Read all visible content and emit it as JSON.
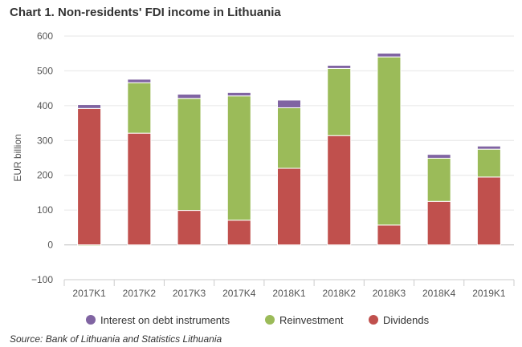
{
  "chart_data": {
    "type": "bar",
    "stacked": true,
    "title": "Chart 1. Non-residents' FDI income in Lithuania",
    "ylabel": "EUR billion",
    "xlabel": "",
    "ylim": [
      -100,
      600
    ],
    "yticks": [
      -100,
      0,
      100,
      200,
      300,
      400,
      500,
      600
    ],
    "ytick_labels": [
      "−100",
      "0",
      "100",
      "200",
      "300",
      "400",
      "500",
      "600"
    ],
    "grid": true,
    "legend_position": "bottom",
    "categories": [
      "2017K1",
      "2017K2",
      "2017K3",
      "2017K4",
      "2018K1",
      "2018K2",
      "2018K3",
      "2018K4",
      "2019K1"
    ],
    "series": [
      {
        "name": "Dividends",
        "color": "#c0504d",
        "values": [
          392,
          321,
          99,
          71,
          220,
          314,
          57,
          125,
          195
        ]
      },
      {
        "name": "Reinvestment",
        "color": "#9bbb59",
        "values": [
          -3,
          145,
          322,
          357,
          174,
          193,
          483,
          124,
          80
        ]
      },
      {
        "name": "Interest on debt instruments",
        "color": "#8064a2",
        "values": [
          11,
          10,
          12,
          10,
          22,
          9,
          11,
          11,
          9
        ]
      }
    ],
    "legend_order": [
      "Interest on debt instruments",
      "Reinvestment",
      "Dividends"
    ]
  },
  "source": "Source: Bank of Lithuania and Statistics Lithuania"
}
